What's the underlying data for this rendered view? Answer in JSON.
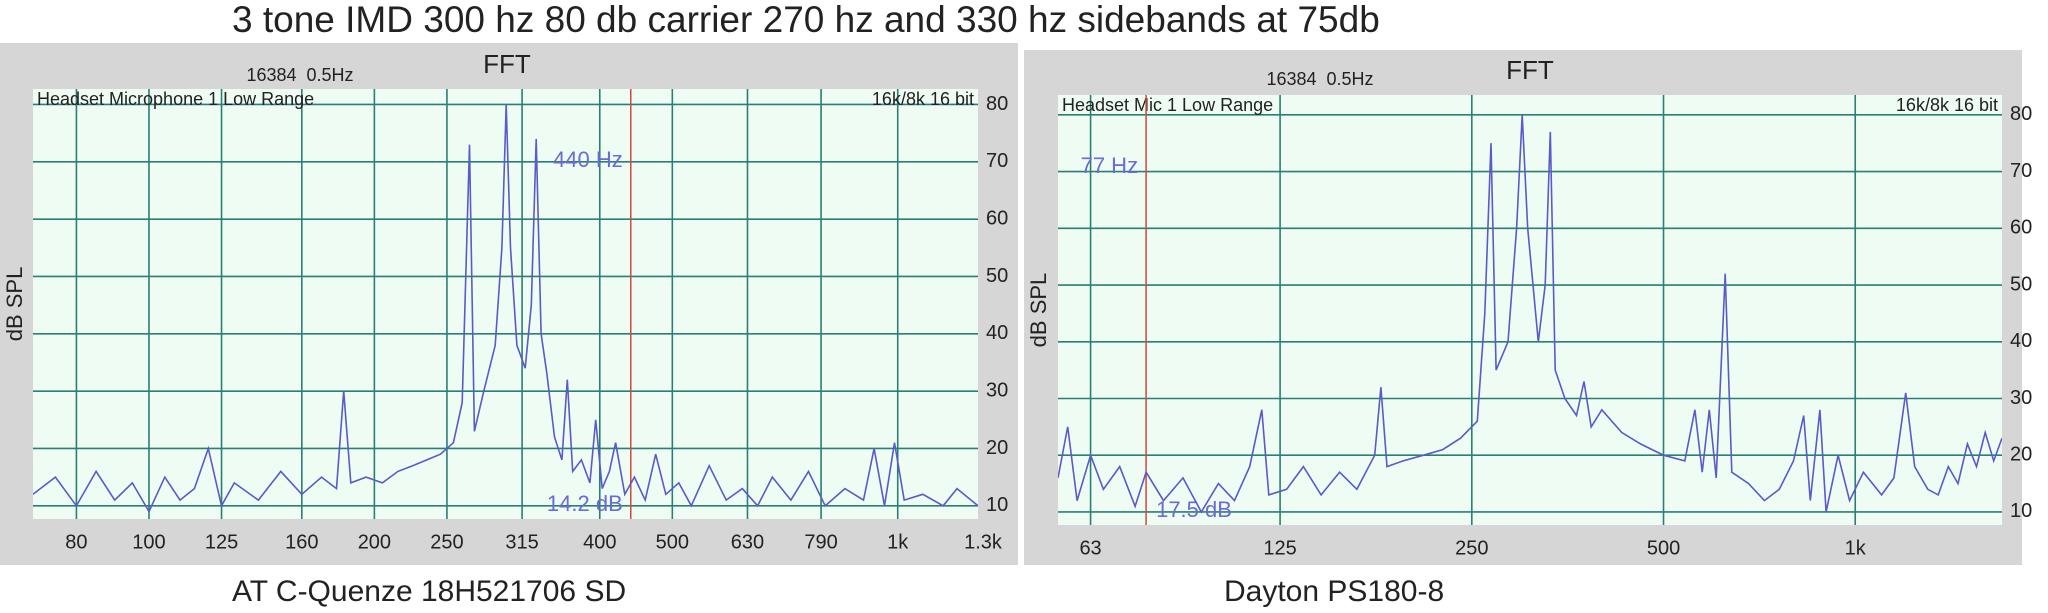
{
  "page_title": "3 tone IMD 300 hz 80 db carrier 270 hz and 330 hz sidebands at 75db",
  "chart_data": [
    {
      "type": "line",
      "title": "FFT",
      "settings": "16384  0.5Hz",
      "input": "Headset Microphone 1 Low Range",
      "format": "16k/8k 16 bit",
      "ylabel": "dB SPL",
      "caption": "AT C-Quenze 18H521706 SD",
      "cursor": 440,
      "cursor_freq_label": "440 Hz",
      "cursor_level_label": "14.2 dB",
      "xscale": "log",
      "xlim": [
        70,
        1280
      ],
      "ylim": [
        7.7,
        82.7
      ],
      "grid": true,
      "color": "#5a5ac8",
      "xticks": [
        80,
        100,
        125,
        160,
        200,
        250,
        315,
        400,
        500,
        630,
        790,
        {
          "value": 1000,
          "label": "1k"
        },
        {
          "value": 1300,
          "label": "1.3k"
        }
      ],
      "yticks": [
        10,
        20,
        30,
        40,
        50,
        60,
        70,
        80
      ],
      "x": [
        70,
        75,
        80,
        85,
        90,
        95,
        100,
        105,
        110,
        115,
        120,
        125,
        130,
        140,
        150,
        160,
        170,
        178,
        182,
        186,
        195,
        205,
        215,
        225,
        235,
        245,
        255,
        262,
        268,
        272,
        280,
        290,
        296,
        300,
        304,
        310,
        318,
        324,
        329,
        334,
        340,
        348,
        356,
        362,
        368,
        378,
        388,
        395,
        403,
        412,
        420,
        432,
        445,
        460,
        475,
        490,
        510,
        530,
        560,
        590,
        620,
        650,
        680,
        720,
        760,
        800,
        850,
        900,
        930,
        960,
        990,
        1020,
        1080,
        1150,
        1200,
        1280
      ],
      "values": [
        12,
        15,
        10,
        16,
        11,
        14,
        9,
        15,
        11,
        13,
        20,
        10,
        14,
        11,
        16,
        12,
        15,
        13,
        30,
        14,
        15,
        14,
        16,
        17,
        18,
        19,
        21,
        28,
        73,
        23,
        30,
        38,
        55,
        80,
        55,
        38,
        34,
        45,
        74,
        40,
        33,
        22,
        18,
        32,
        16,
        18,
        14,
        25,
        13,
        16,
        21,
        12,
        15,
        11,
        19,
        12,
        14,
        10,
        17,
        11,
        13,
        10,
        15,
        11,
        16,
        10,
        13,
        11,
        20,
        10,
        21,
        11,
        12,
        10,
        13,
        10
      ]
    },
    {
      "type": "line",
      "title": "FFT",
      "settings": "16384  0.5Hz",
      "input": "Headset Mic 1 Low Range",
      "format": "16k/8k 16 bit",
      "ylabel": "dB SPL",
      "caption": "Dayton PS180-8",
      "cursor": 77,
      "cursor_freq_label": "77 Hz",
      "cursor_level_label": "17.5 dB",
      "xscale": "log",
      "xlim": [
        56,
        1700
      ],
      "ylim": [
        7.7,
        83.5
      ],
      "grid": true,
      "color": "#5a5ac8",
      "xticks": [
        63,
        125,
        250,
        500,
        {
          "value": 1000,
          "label": "1k"
        }
      ],
      "yticks": [
        10,
        20,
        30,
        40,
        50,
        60,
        70,
        80
      ],
      "x": [
        56,
        58,
        60,
        63,
        66,
        70,
        74,
        77,
        82,
        88,
        94,
        100,
        106,
        112,
        117,
        120,
        128,
        136,
        145,
        155,
        165,
        176,
        180,
        184,
        195,
        210,
        225,
        240,
        255,
        262,
        268,
        273,
        285,
        294,
        300,
        306,
        318,
        326,
        332,
        338,
        350,
        365,
        375,
        385,
        400,
        430,
        460,
        500,
        540,
        560,
        575,
        590,
        605,
        625,
        640,
        680,
        720,
        760,
        800,
        830,
        850,
        880,
        900,
        940,
        980,
        1030,
        1100,
        1150,
        1200,
        1240,
        1300,
        1350,
        1400,
        1450,
        1500,
        1550,
        1600,
        1650,
        1700
      ],
      "values": [
        16,
        25,
        12,
        20,
        14,
        18,
        11,
        17,
        12,
        16,
        10,
        15,
        12,
        18,
        28,
        13,
        14,
        18,
        13,
        17,
        14,
        20,
        32,
        18,
        19,
        20,
        21,
        23,
        26,
        45,
        75,
        35,
        40,
        60,
        80,
        60,
        40,
        50,
        77,
        35,
        30,
        27,
        33,
        25,
        28,
        24,
        22,
        20,
        19,
        28,
        17,
        28,
        16,
        52,
        17,
        15,
        12,
        14,
        19,
        27,
        12,
        28,
        10,
        20,
        12,
        17,
        13,
        16,
        31,
        18,
        14,
        13,
        18,
        15,
        22,
        18,
        24,
        19,
        23
      ]
    }
  ]
}
